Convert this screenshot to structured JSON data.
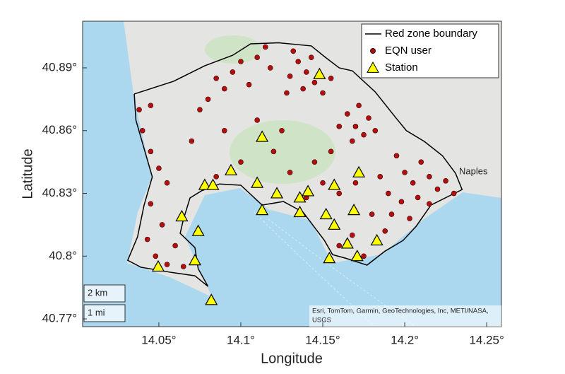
{
  "chart_data": {
    "type": "scatter",
    "xlabel": "Longitude",
    "ylabel": "Latitude",
    "xlim": [
      14.0035,
      14.259
    ],
    "ylim": [
      40.7663,
      40.9123
    ],
    "xticks": [
      {
        "value": 14.05,
        "label": "14.05°"
      },
      {
        "value": 14.1,
        "label": "14.1°"
      },
      {
        "value": 14.15,
        "label": "14.15°"
      },
      {
        "value": 14.2,
        "label": "14.2°"
      },
      {
        "value": 14.25,
        "label": "14.25°"
      }
    ],
    "yticks": [
      {
        "value": 40.77,
        "label": "40.77°"
      },
      {
        "value": 40.8,
        "label": "40.8°"
      },
      {
        "value": 40.83,
        "label": "40.83°"
      },
      {
        "value": 40.86,
        "label": "40.86°"
      },
      {
        "value": 40.89,
        "label": "40.89°"
      }
    ],
    "legend": "upper right",
    "series": [
      {
        "name": "Red zone boundary",
        "marker": "line",
        "color": "#000000",
        "x": [
          14.035,
          14.059,
          14.078,
          14.095,
          14.106,
          14.123,
          14.143,
          14.151,
          14.16,
          14.168,
          14.182,
          14.194,
          14.201,
          14.212,
          14.223,
          14.231,
          14.235,
          14.229,
          14.216,
          14.207,
          14.199,
          14.188,
          14.177,
          14.164,
          14.156,
          14.151,
          14.138,
          14.126,
          14.113,
          14.1,
          14.087,
          14.076,
          14.069,
          14.065,
          14.063,
          14.072,
          14.074,
          14.08,
          14.072,
          14.057,
          14.039,
          14.031,
          14.037,
          14.041,
          14.046,
          14.041,
          14.036,
          14.035
        ],
        "y": [
          40.8775,
          40.8836,
          40.891,
          40.896,
          40.9015,
          40.902,
          40.9005,
          40.8954,
          40.89,
          40.8886,
          40.8785,
          40.8667,
          40.86,
          40.8548,
          40.848,
          40.8396,
          40.8318,
          40.8295,
          40.8244,
          40.8143,
          40.8075,
          40.8024,
          40.7957,
          40.799,
          40.8007,
          40.8075,
          40.821,
          40.8261,
          40.8244,
          40.8339,
          40.8345,
          40.8312,
          40.8278,
          40.8176,
          40.8109,
          40.8041,
          40.794,
          40.7855,
          40.7906,
          40.7923,
          40.7947,
          40.798,
          40.8092,
          40.8244,
          40.8379,
          40.8514,
          40.865,
          40.8775
        ]
      },
      {
        "name": "EQN user",
        "marker": "circle",
        "color": "#b01010",
        "x": [
          14.135,
          14.14,
          14.145,
          14.13,
          14.15,
          14.138,
          14.128,
          14.143,
          14.132,
          14.155,
          14.085,
          14.095,
          14.1,
          14.11,
          14.118,
          14.09,
          14.08,
          14.105,
          14.075,
          14.115,
          14.165,
          14.17,
          14.175,
          14.178,
          14.168,
          14.16,
          14.172,
          14.182,
          14.195,
          14.2,
          14.205,
          14.21,
          14.215,
          14.22,
          14.225,
          14.19,
          14.198,
          14.208,
          14.185,
          14.192,
          14.203,
          14.23,
          14.215,
          14.188,
          14.18,
          14.04,
          14.045,
          14.05,
          14.055,
          14.045,
          14.052,
          14.043,
          14.048,
          14.055,
          14.06,
          14.065,
          14.038,
          14.045,
          14.12,
          14.1,
          14.13,
          14.145,
          14.155,
          14.125,
          14.11,
          14.09,
          14.07,
          14.15,
          14.16,
          14.17,
          14.14,
          14.085,
          14.168,
          14.16,
          14.175
        ],
        "y": [
          40.893,
          40.888,
          40.883,
          40.886,
          40.878,
          40.88,
          40.878,
          40.895,
          40.898,
          40.885,
          40.885,
          40.888,
          40.893,
          40.895,
          40.89,
          40.88,
          40.875,
          40.882,
          40.87,
          40.9,
          40.868,
          40.862,
          40.858,
          40.866,
          40.855,
          40.862,
          40.872,
          40.86,
          40.848,
          40.84,
          40.835,
          40.845,
          40.838,
          40.832,
          40.836,
          40.83,
          40.826,
          40.828,
          40.838,
          40.82,
          40.818,
          40.83,
          40.825,
          40.812,
          40.82,
          40.86,
          40.85,
          40.842,
          40.835,
          40.825,
          40.815,
          40.808,
          40.8,
          40.796,
          40.805,
          40.795,
          40.87,
          40.872,
          40.85,
          40.845,
          40.84,
          40.845,
          40.85,
          40.86,
          40.865,
          40.86,
          40.855,
          40.835,
          40.83,
          40.835,
          40.828,
          40.838,
          40.81,
          40.805,
          40.8
        ]
      },
      {
        "name": "Station",
        "marker": "triangle",
        "color": "#ffff00",
        "x": [
          14.148,
          14.113,
          14.172,
          14.094,
          14.078,
          14.083,
          14.11,
          14.122,
          14.141,
          14.136,
          14.157,
          14.113,
          14.136,
          14.152,
          14.157,
          14.169,
          14.064,
          14.074,
          14.183,
          14.165,
          14.154,
          14.171,
          14.0496,
          14.072,
          14.082
        ],
        "y": [
          40.887,
          40.857,
          40.84,
          40.841,
          40.834,
          40.834,
          40.835,
          40.83,
          40.831,
          40.828,
          40.834,
          40.822,
          40.821,
          40.82,
          40.815,
          40.822,
          40.819,
          40.812,
          40.8075,
          40.806,
          40.799,
          40.8,
          40.795,
          40.798,
          40.779
        ]
      }
    ]
  },
  "map_overlay": {
    "place_label": "Naples",
    "scale_labels": [
      "2 km",
      "1 mi"
    ],
    "attribution": [
      "Esri, TomTom, Garmin, GeoTechnologies, Inc, METI/NASA,",
      "USGS"
    ]
  }
}
